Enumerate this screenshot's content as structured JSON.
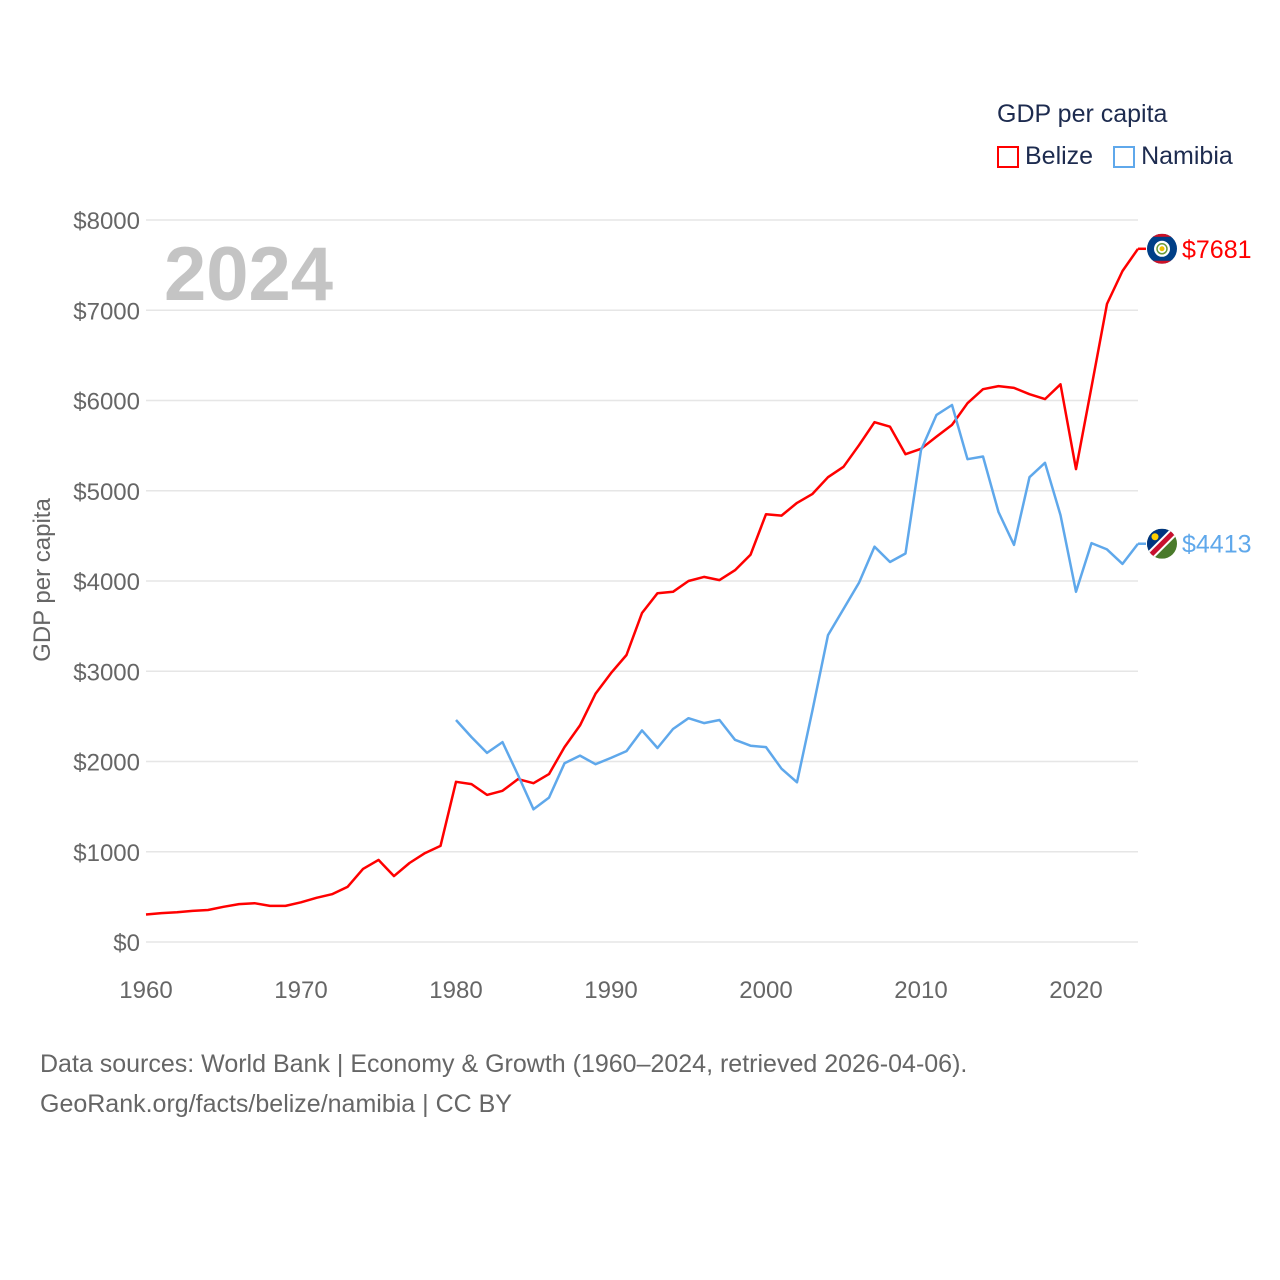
{
  "chart_data": {
    "type": "line",
    "title": "GDP per capita",
    "year_label": "2024",
    "xlabel": "",
    "ylabel": "GDP per capita",
    "xlim": [
      1960,
      2024
    ],
    "ylim": [
      0,
      8000
    ],
    "x_ticks": [
      "1960",
      "1970",
      "1980",
      "1990",
      "2000",
      "2010",
      "2020"
    ],
    "y_ticks": [
      "$0",
      "$1000",
      "$2000",
      "$3000",
      "$4000",
      "$5000",
      "$6000",
      "$7000",
      "$8000"
    ],
    "grid": true,
    "legend_position": "top-right",
    "series": [
      {
        "name": "Belize",
        "color": "#ff0000",
        "end_label": "$7681",
        "flag": "belize-flag",
        "start_year": 1960,
        "values": [
          305,
          320,
          330,
          345,
          355,
          390,
          420,
          430,
          400,
          400,
          440,
          490,
          530,
          610,
          810,
          910,
          730,
          875,
          985,
          1065,
          1775,
          1750,
          1630,
          1675,
          1805,
          1760,
          1860,
          2160,
          2400,
          2750,
          2980,
          3180,
          3645,
          3865,
          3880,
          4000,
          4045,
          4010,
          4120,
          4290,
          4740,
          4725,
          4865,
          4965,
          5150,
          5265,
          5505,
          5760,
          5710,
          5405,
          5465,
          5600,
          5730,
          5970,
          6125,
          6160,
          6140,
          6070,
          6015,
          6180,
          5240,
          6150,
          7070,
          7435,
          7681
        ]
      },
      {
        "name": "Namibia",
        "color": "#5fa8eb",
        "end_label": "$4413",
        "flag": "namibia-flag",
        "start_year": 1980,
        "values": [
          2460,
          2270,
          2095,
          2215,
          1850,
          1470,
          1600,
          1980,
          2065,
          1970,
          2040,
          2115,
          2345,
          2150,
          2360,
          2480,
          2425,
          2460,
          2240,
          2175,
          2160,
          1920,
          1770,
          2570,
          3400,
          3690,
          3980,
          4380,
          4210,
          4305,
          5450,
          5840,
          5950,
          5350,
          5380,
          4765,
          4400,
          5150,
          5310,
          4730,
          3880,
          4420,
          4350,
          4190,
          4413
        ]
      }
    ]
  },
  "footer": {
    "line1": "Data sources: World Bank | Economy & Growth (1960–2024, retrieved 2026-04-06).",
    "line2": "GeoRank.org/facts/belize/namibia | CC BY"
  }
}
